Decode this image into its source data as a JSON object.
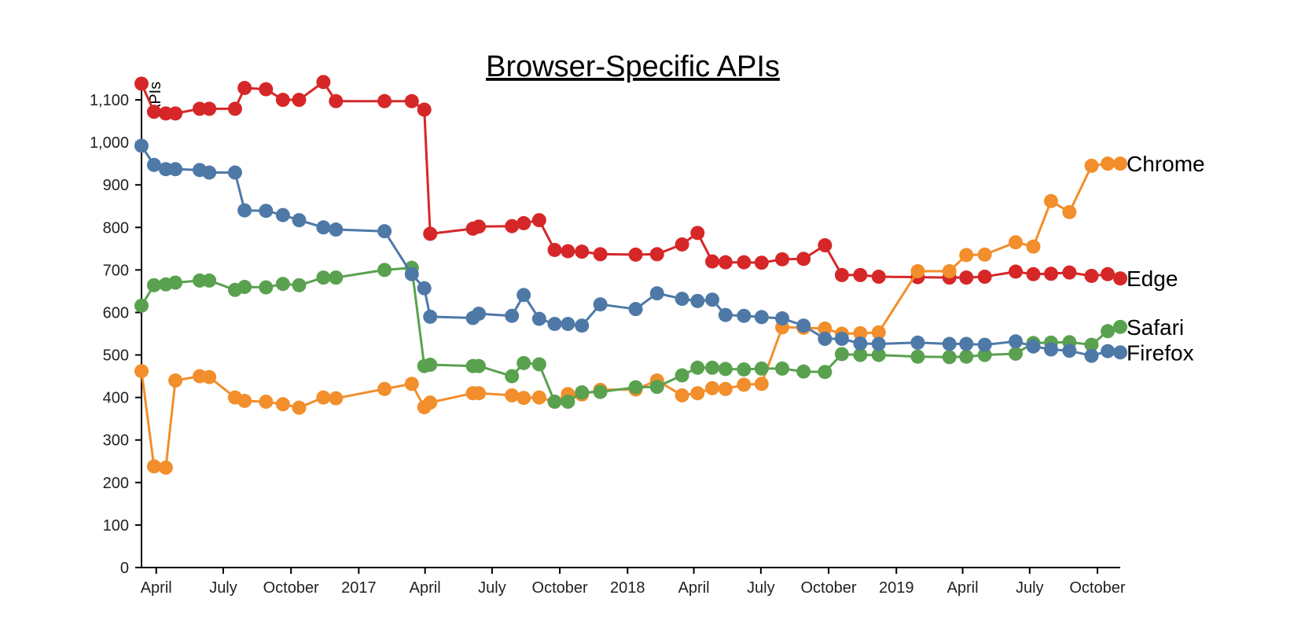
{
  "chart_data": {
    "type": "line",
    "title": "Browser-Specific APIs",
    "xlabel": "",
    "ylabel": "APIs",
    "ylim": [
      0,
      1150
    ],
    "xlim": [
      "2016-03-12",
      "2019-11-01"
    ],
    "y_ticks": [
      0,
      100,
      200,
      300,
      400,
      500,
      600,
      700,
      800,
      900,
      1000,
      1100
    ],
    "y_tick_labels": [
      "0",
      "100",
      "200",
      "300",
      "400",
      "500",
      "600",
      "700",
      "800",
      "900",
      "1,000",
      "1,100"
    ],
    "x_ticks": [
      {
        "date": "2016-04-01",
        "label": "April"
      },
      {
        "date": "2016-07-01",
        "label": "July"
      },
      {
        "date": "2016-10-01",
        "label": "October"
      },
      {
        "date": "2017-01-01",
        "label": "2017"
      },
      {
        "date": "2017-04-01",
        "label": "April"
      },
      {
        "date": "2017-07-01",
        "label": "July"
      },
      {
        "date": "2017-10-01",
        "label": "October"
      },
      {
        "date": "2018-01-01",
        "label": "2018"
      },
      {
        "date": "2018-04-01",
        "label": "April"
      },
      {
        "date": "2018-07-01",
        "label": "July"
      },
      {
        "date": "2018-10-01",
        "label": "October"
      },
      {
        "date": "2019-01-01",
        "label": "2019"
      },
      {
        "date": "2019-04-01",
        "label": "April"
      },
      {
        "date": "2019-07-01",
        "label": "July"
      },
      {
        "date": "2019-10-01",
        "label": "October"
      }
    ],
    "x": [
      "2016-03-12",
      "2016-03-29",
      "2016-04-14",
      "2016-04-27",
      "2016-05-30",
      "2016-06-12",
      "2016-07-17",
      "2016-07-30",
      "2016-08-28",
      "2016-09-20",
      "2016-10-12",
      "2016-11-14",
      "2016-12-01",
      "2017-02-05",
      "2017-03-14",
      "2017-03-31",
      "2017-04-08",
      "2017-06-05",
      "2017-06-13",
      "2017-07-28",
      "2017-08-13",
      "2017-09-03",
      "2017-09-24",
      "2017-10-12",
      "2017-10-31",
      "2017-11-25",
      "2018-01-12",
      "2018-02-10",
      "2018-03-16",
      "2018-04-06",
      "2018-04-26",
      "2018-05-14",
      "2018-06-08",
      "2018-07-02",
      "2018-07-30",
      "2018-08-28",
      "2018-09-26",
      "2018-10-19",
      "2018-11-13",
      "2018-12-08",
      "2019-01-30",
      "2019-03-14",
      "2019-04-06",
      "2019-05-01",
      "2019-06-12",
      "2019-07-06",
      "2019-07-30",
      "2019-08-24",
      "2019-09-23",
      "2019-10-15",
      "2019-11-01"
    ],
    "series": [
      {
        "name": "Edge",
        "color": "#d62728",
        "values": [
          1138,
          1072,
          1068,
          1068,
          1079,
          1079,
          1079,
          1128,
          1125,
          1100,
          1100,
          1142,
          1097,
          1097,
          1097,
          1077,
          785,
          797,
          802,
          803,
          810,
          817,
          747,
          744,
          743,
          737,
          736,
          737,
          760,
          787,
          720,
          718,
          718,
          717,
          725,
          726,
          758,
          688,
          688,
          684,
          683,
          682,
          682,
          684,
          696,
          690,
          691,
          694,
          686,
          690,
          680
        ]
      },
      {
        "name": "Chrome",
        "color": "#f28e2b",
        "values": [
          462,
          238,
          235,
          440,
          450,
          448,
          400,
          392,
          390,
          384,
          376,
          400,
          398,
          420,
          432,
          377,
          388,
          410,
          410,
          405,
          399,
          400,
          390,
          408,
          407,
          418,
          419,
          440,
          405,
          410,
          422,
          420,
          430,
          432,
          565,
          564,
          562,
          550,
          551,
          553,
          697,
          697,
          735,
          736,
          765,
          755,
          862,
          836,
          945,
          950,
          950
        ]
      },
      {
        "name": "Safari",
        "color": "#59a14f",
        "values": [
          616,
          664,
          666,
          670,
          675,
          675,
          653,
          660,
          659,
          667,
          664,
          682,
          682,
          700,
          705,
          474,
          477,
          474,
          474,
          450,
          481,
          478,
          390,
          390,
          412,
          413,
          424,
          425,
          452,
          470,
          470,
          467,
          466,
          468,
          468,
          461,
          460,
          502,
          500,
          500,
          496,
          495,
          496,
          500,
          503,
          528,
          529,
          530,
          524,
          556,
          566
        ]
      },
      {
        "name": "Firefox",
        "color": "#4e79a7",
        "values": [
          992,
          947,
          937,
          937,
          935,
          929,
          929,
          840,
          839,
          829,
          817,
          800,
          795,
          791,
          690,
          657,
          590,
          587,
          597,
          592,
          641,
          585,
          573,
          573,
          569,
          619,
          608,
          645,
          632,
          627,
          630,
          594,
          592,
          589,
          586,
          569,
          538,
          538,
          527,
          526,
          529,
          526,
          526,
          524,
          532,
          520,
          513,
          510,
          498,
          509,
          506
        ]
      }
    ],
    "end_labels": [
      "Chrome",
      "Edge",
      "Safari",
      "Firefox"
    ]
  }
}
